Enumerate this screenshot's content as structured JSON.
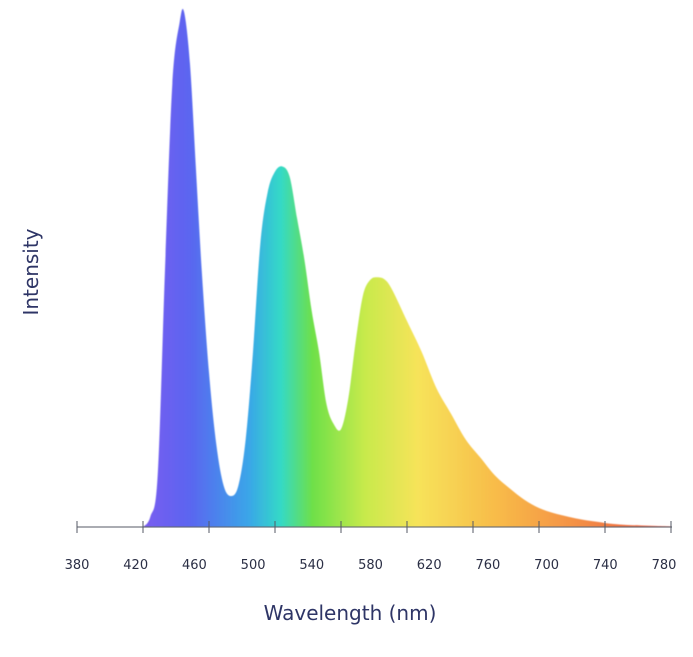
{
  "chart_data": {
    "type": "area",
    "title": "",
    "xlabel": "Wavelength (nm)",
    "ylabel": "Intensity",
    "x_tick_labels": [
      "380",
      "420",
      "460",
      "500",
      "540",
      "580",
      "620",
      "760",
      "700",
      "740",
      "780"
    ],
    "y_ticks_shown": false,
    "grid": false,
    "legend": "none",
    "ylim": [
      0,
      1
    ],
    "series": [
      {
        "x": [
          420,
          425,
          430,
          435,
          440,
          445,
          448,
          452,
          456,
          460,
          465,
          470,
          475,
          480,
          485,
          490,
          495,
          500,
          505,
          510,
          515,
          520,
          525,
          530,
          535,
          540,
          545,
          550,
          555,
          560,
          565,
          570,
          575,
          580,
          585,
          590,
          600,
          610,
          620,
          630,
          640,
          650,
          660,
          670,
          680,
          690,
          700,
          710,
          720,
          730,
          740,
          750,
          760,
          770,
          780
        ],
        "values": [
          0.0,
          0.02,
          0.1,
          0.5,
          0.86,
          0.98,
          1.0,
          0.9,
          0.7,
          0.5,
          0.3,
          0.16,
          0.08,
          0.06,
          0.08,
          0.17,
          0.34,
          0.55,
          0.65,
          0.69,
          0.7,
          0.68,
          0.6,
          0.52,
          0.42,
          0.34,
          0.24,
          0.2,
          0.19,
          0.25,
          0.36,
          0.45,
          0.48,
          0.485,
          0.48,
          0.46,
          0.4,
          0.34,
          0.27,
          0.22,
          0.17,
          0.135,
          0.1,
          0.075,
          0.053,
          0.037,
          0.027,
          0.02,
          0.014,
          0.01,
          0.006,
          0.004,
          0.003,
          0.002,
          0.001
        ]
      }
    ],
    "colors": {
      "violet": "#7a5cf0",
      "blue": "#4f6df0",
      "cyan": "#34d9c7",
      "green": "#6ee04a",
      "yellow": "#f7e35a",
      "orange": "#f7a84a",
      "red": "#e9503e",
      "axis": "#555a66"
    }
  }
}
